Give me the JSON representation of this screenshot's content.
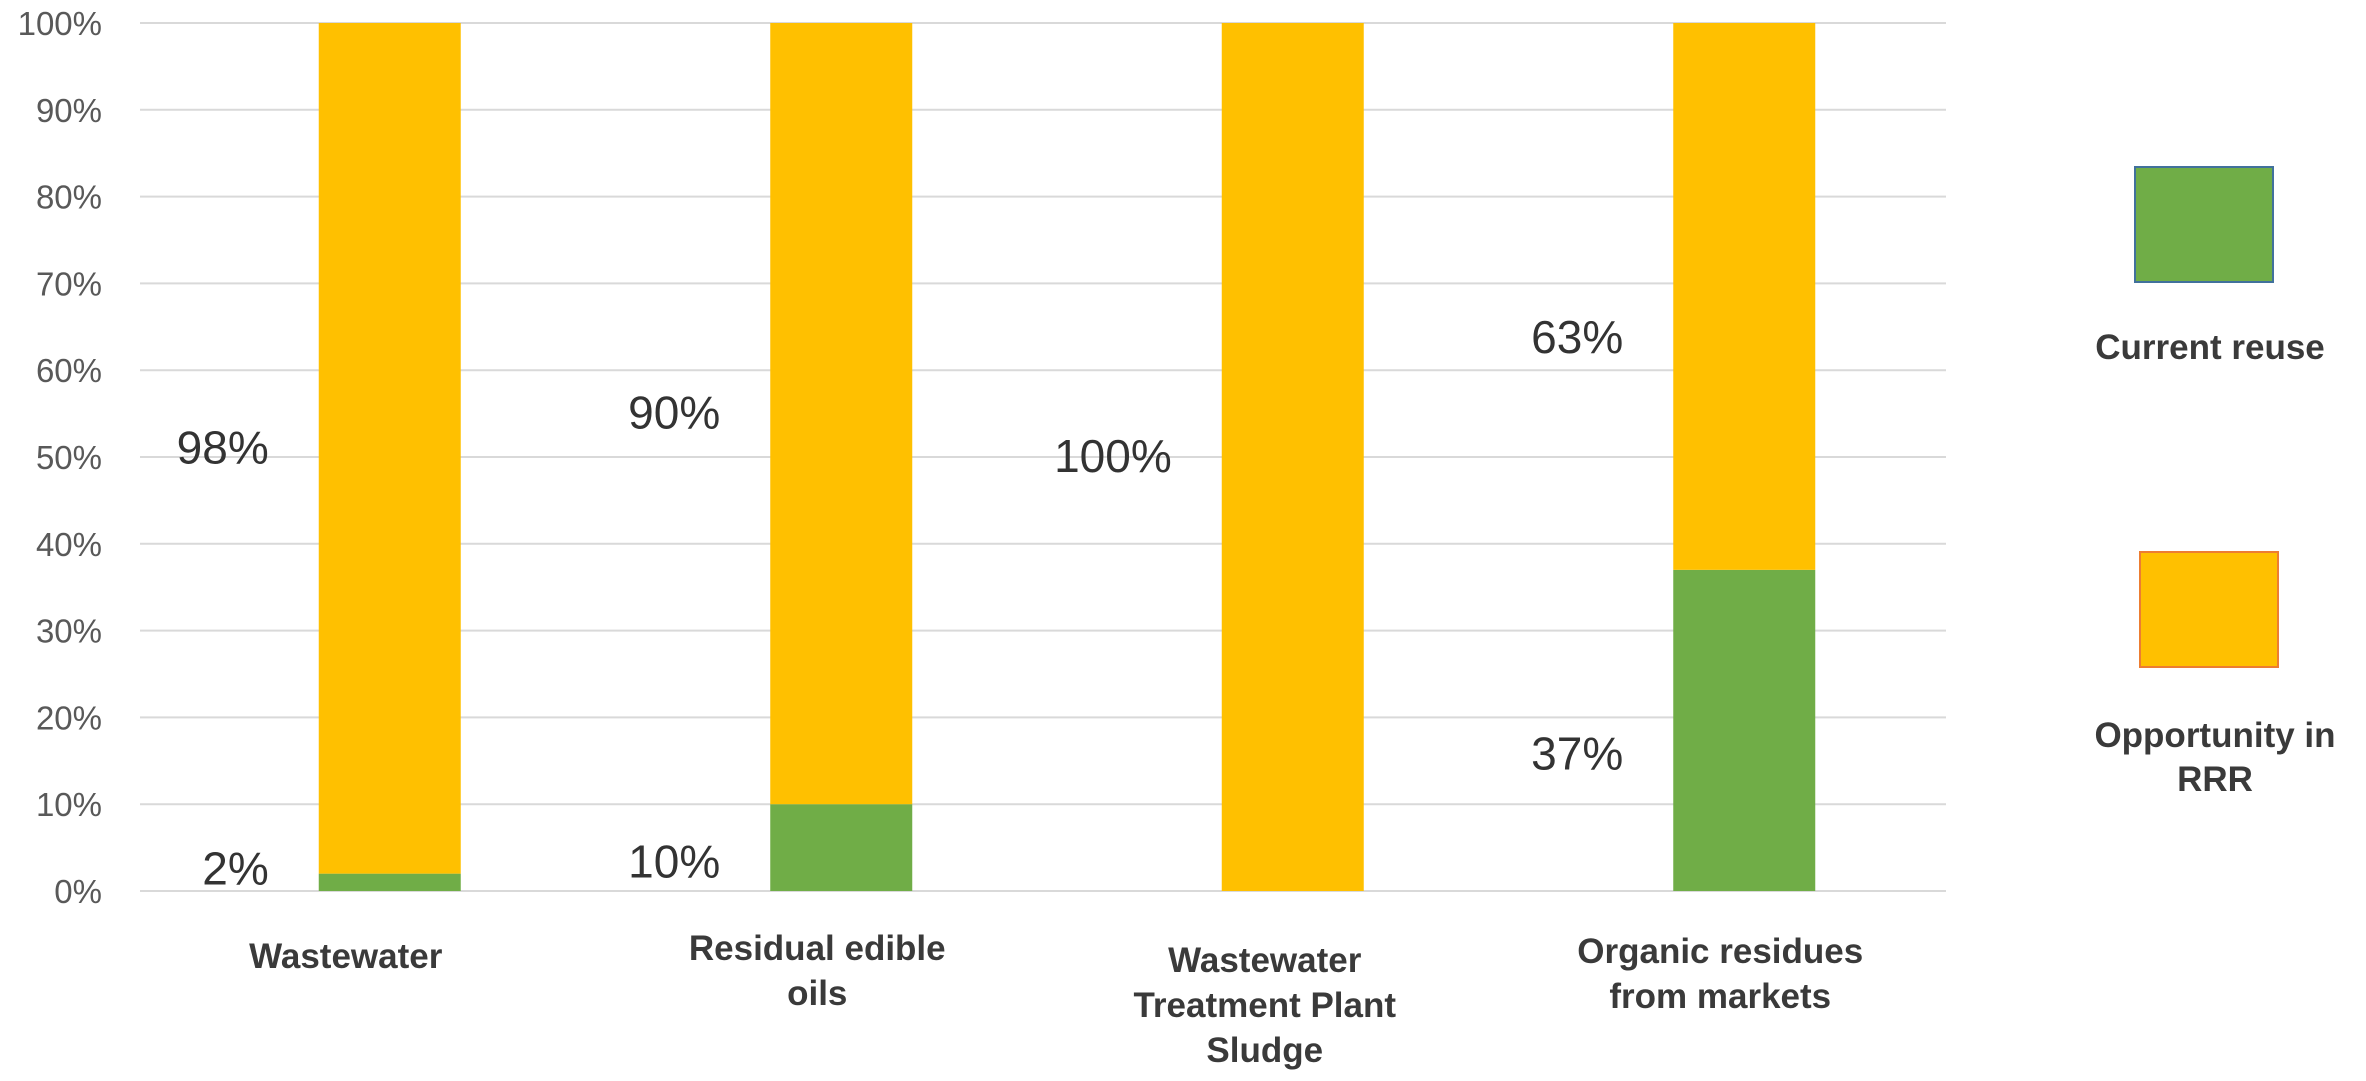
{
  "chart_data": {
    "type": "bar",
    "stacked": true,
    "categories": [
      "Wastewater",
      "Residual edible oils",
      "Wastewater Treatment Plant Sludge",
      "Organic residues from markets"
    ],
    "series": [
      {
        "name": "Current reuse",
        "values": [
          2,
          10,
          0,
          37
        ],
        "labels": [
          "2%",
          "10%",
          "",
          "37%"
        ],
        "color": "#70AD47",
        "border": "#41719C"
      },
      {
        "name": "Opportunity in RRR",
        "values": [
          98,
          90,
          100,
          63
        ],
        "labels": [
          "98%",
          "90%",
          "100%",
          "63%"
        ],
        "color": "#FFC000",
        "border": "#ED7D31"
      }
    ],
    "y_ticks": [
      "0%",
      "10%",
      "20%",
      "30%",
      "40%",
      "50%",
      "60%",
      "70%",
      "80%",
      "90%",
      "100%"
    ],
    "ylim": [
      0,
      100
    ],
    "grid": true,
    "gridColor": "#D9D9D9",
    "legend_position": "right",
    "title": "",
    "xlabel": "",
    "ylabel": ""
  }
}
